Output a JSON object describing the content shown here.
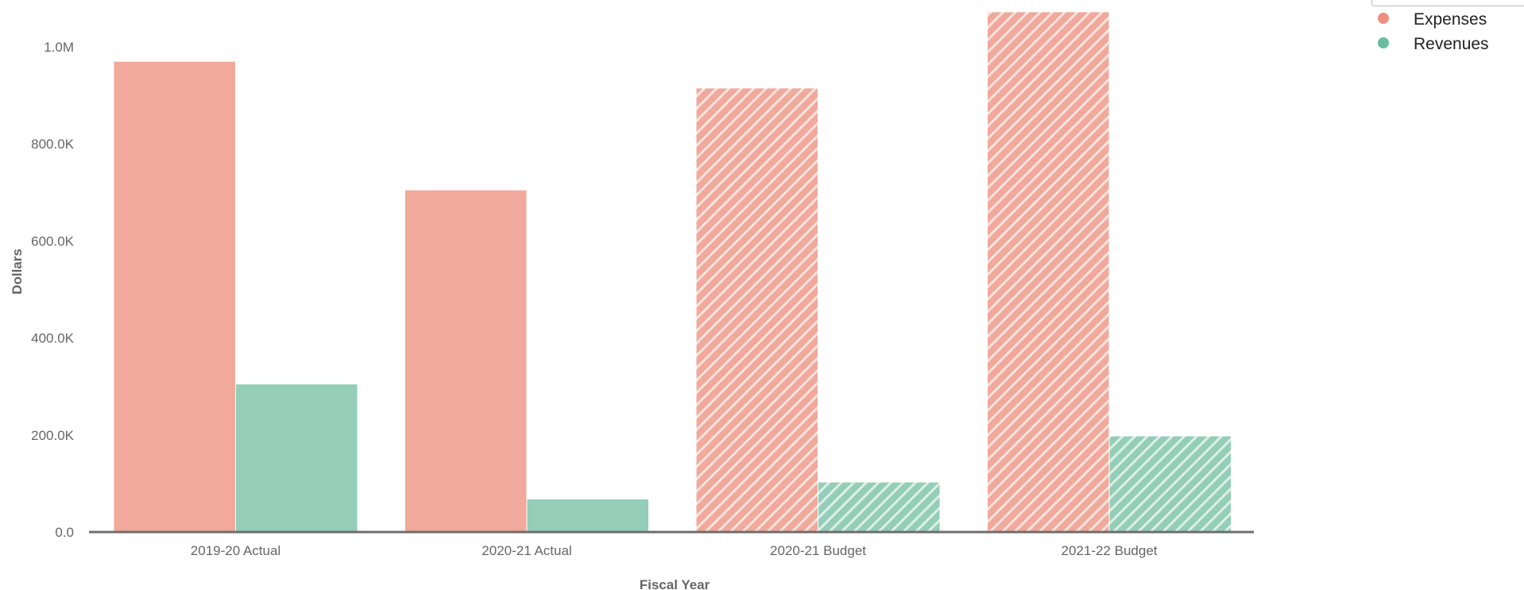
{
  "chart_data": {
    "type": "bar",
    "title": "",
    "xlabel": "Fiscal Year",
    "ylabel": "Dollars",
    "categories": [
      "2019-20 Actual",
      "2020-21 Actual",
      "2020-21 Budget",
      "2021-22 Budget"
    ],
    "series": [
      {
        "name": "Expenses",
        "color": "#f0a99b",
        "values": [
          970000,
          705000,
          915000,
          1072000
        ],
        "hatched": [
          false,
          false,
          true,
          true
        ]
      },
      {
        "name": "Revenues",
        "color": "#94cdb8",
        "values": [
          305000,
          68000,
          103000,
          198000
        ],
        "hatched": [
          false,
          false,
          true,
          true
        ]
      }
    ],
    "ylim": [
      0,
      1080000
    ],
    "yticks": [
      {
        "value": 0,
        "label": "0.0"
      },
      {
        "value": 200000,
        "label": "200.0K"
      },
      {
        "value": 400000,
        "label": "400.0K"
      },
      {
        "value": 600000,
        "label": "600.0K"
      },
      {
        "value": 800000,
        "label": "800.0K"
      },
      {
        "value": 1000000,
        "label": "1.0M"
      }
    ],
    "grid": false,
    "legend": {
      "position": "top-right",
      "marker": "circle"
    },
    "legend_marker_colors": [
      "#ee8f7e",
      "#6bbd9f"
    ]
  }
}
